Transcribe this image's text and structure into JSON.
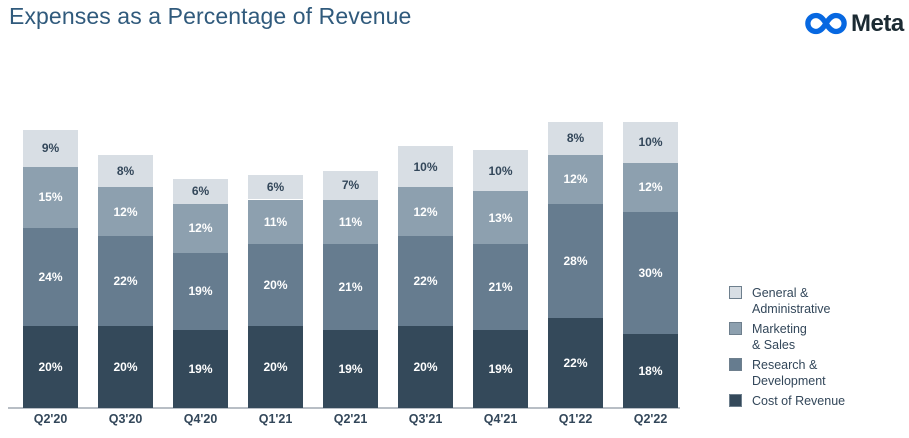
{
  "header": {
    "title": "Expenses as a Percentage of Revenue",
    "logo_text": "Meta"
  },
  "colors": {
    "title_text": "#305A7C",
    "logo_infinity": "#0768E1",
    "logo_text": "#1C2B33",
    "axis_line": "#B8BEC5",
    "axis_label": "#33475A",
    "label_on_dark": "#FFFFFF",
    "label_on_light": "#33475A"
  },
  "chart_data": {
    "type": "bar",
    "stacked": true,
    "title": "Expenses as a Percentage of Revenue",
    "xlabel": "",
    "ylabel": "",
    "grid": false,
    "legend_position": "right",
    "value_suffix": "%",
    "categories": [
      "Q2'20",
      "Q3'20",
      "Q4'20",
      "Q1'21",
      "Q2'21",
      "Q3'21",
      "Q4'21",
      "Q1'22",
      "Q2'22"
    ],
    "series": [
      {
        "name": "Cost of Revenue",
        "color": "#34495A",
        "label_color": "#FFFFFF",
        "values": [
          20,
          20,
          19,
          20,
          19,
          20,
          19,
          22,
          18
        ]
      },
      {
        "name": "Research & Development",
        "color": "#667C8F",
        "label_color": "#FFFFFF",
        "values": [
          24,
          22,
          19,
          20,
          21,
          22,
          21,
          28,
          30
        ]
      },
      {
        "name": "Marketing & Sales",
        "color": "#8DA0AF",
        "label_color": "#FFFFFF",
        "values": [
          15,
          12,
          12,
          11,
          11,
          12,
          13,
          12,
          12
        ]
      },
      {
        "name": "General & Administrative",
        "color": "#D8DEE4",
        "label_color": "#33475A",
        "values": [
          9,
          8,
          6,
          6,
          7,
          10,
          10,
          8,
          10
        ]
      }
    ],
    "totals": [
      68,
      62,
      56,
      57,
      58,
      64,
      63,
      70,
      70
    ]
  },
  "legend": {
    "items": [
      {
        "label": "General &\nAdministrative",
        "color": "#D8DEE4"
      },
      {
        "label": "Marketing\n& Sales",
        "color": "#8DA0AF"
      },
      {
        "label": "Research &\nDevelopment",
        "color": "#667C8F"
      },
      {
        "label": "Cost of Revenue",
        "color": "#34495A"
      }
    ]
  }
}
